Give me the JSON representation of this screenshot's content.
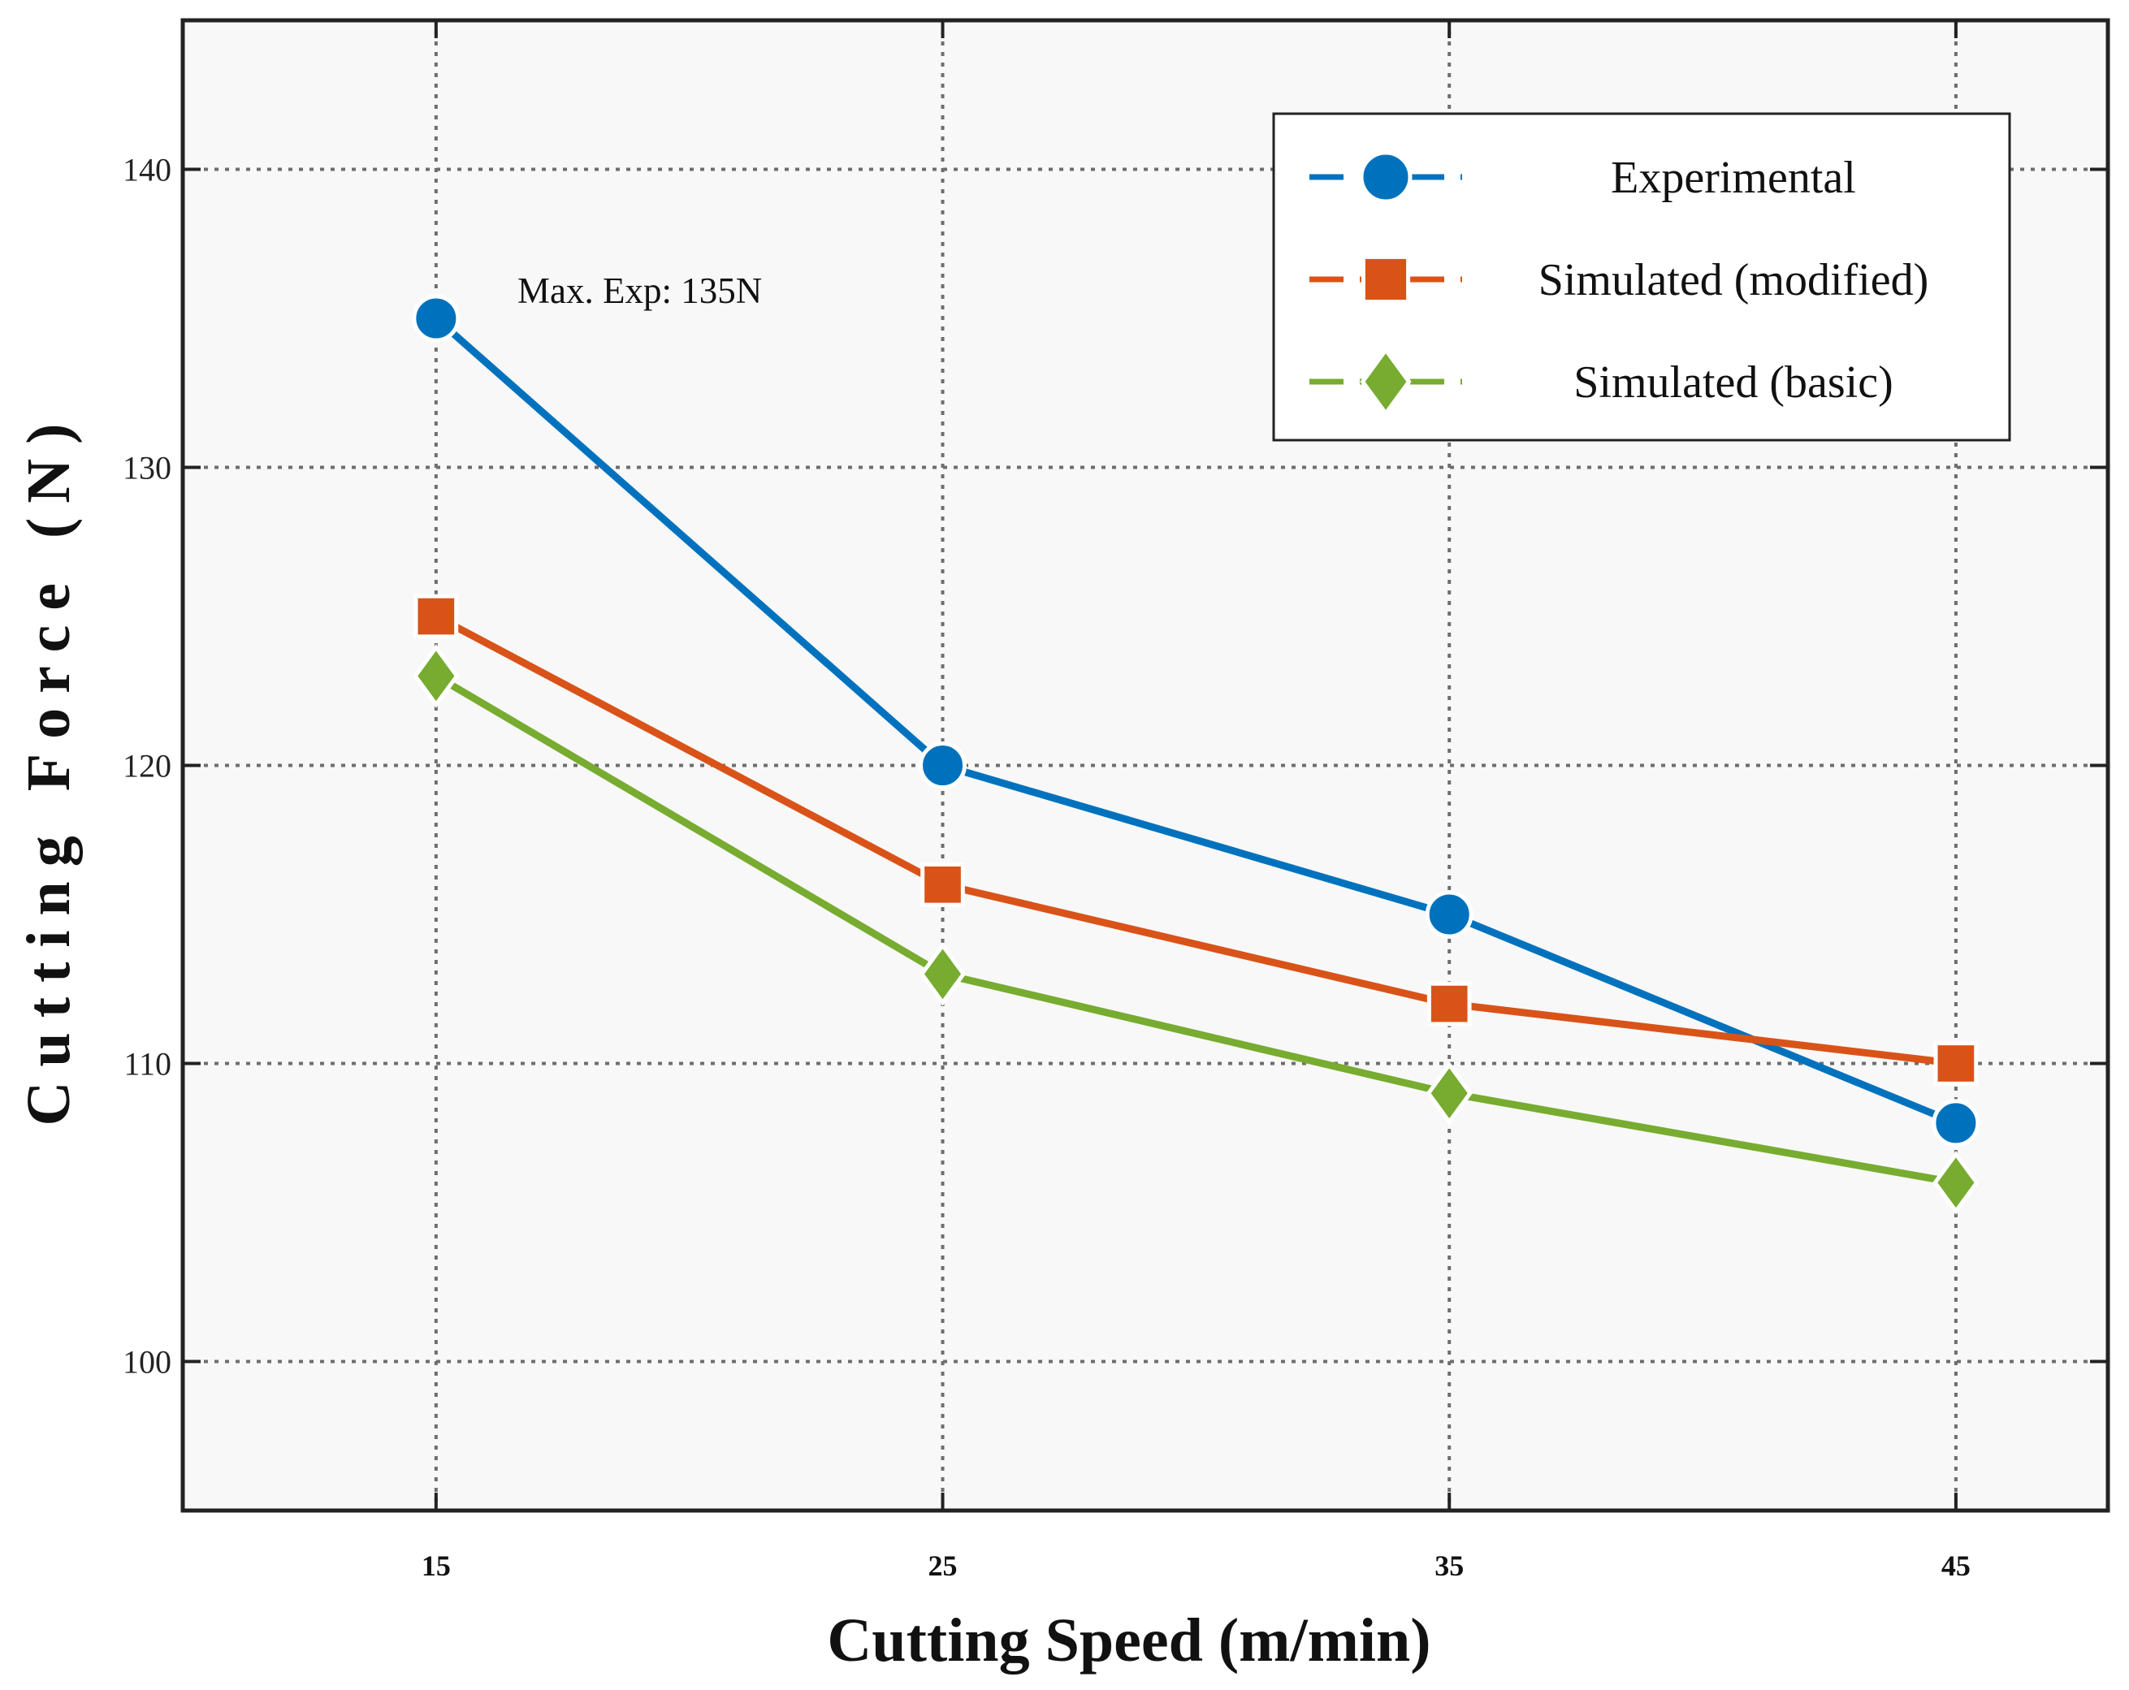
{
  "chart_data": {
    "type": "line",
    "x": [
      15,
      25,
      35,
      45
    ],
    "xlim": [
      10,
      48
    ],
    "ylim": [
      95,
      145
    ],
    "yticks": [
      100,
      110,
      120,
      130,
      140
    ],
    "xticks": [
      15,
      25,
      35,
      45
    ],
    "xlabel": "Cutting Speed (m/min)",
    "ylabel": "Cutting Force (N)",
    "grid": true,
    "legend_position": "top-right",
    "annotation": "Max. Exp: 135N",
    "series": [
      {
        "name": "Experimental",
        "values": [
          135,
          120,
          115,
          108
        ],
        "color": "#0072BD",
        "marker": "circle"
      },
      {
        "name": "Simulated (modified)",
        "values": [
          125,
          116,
          112,
          110
        ],
        "color": "#D95319",
        "marker": "square"
      },
      {
        "name": "Simulated (basic)",
        "values": [
          123,
          113,
          109,
          106
        ],
        "color": "#77AC30",
        "marker": "diamond"
      }
    ]
  }
}
